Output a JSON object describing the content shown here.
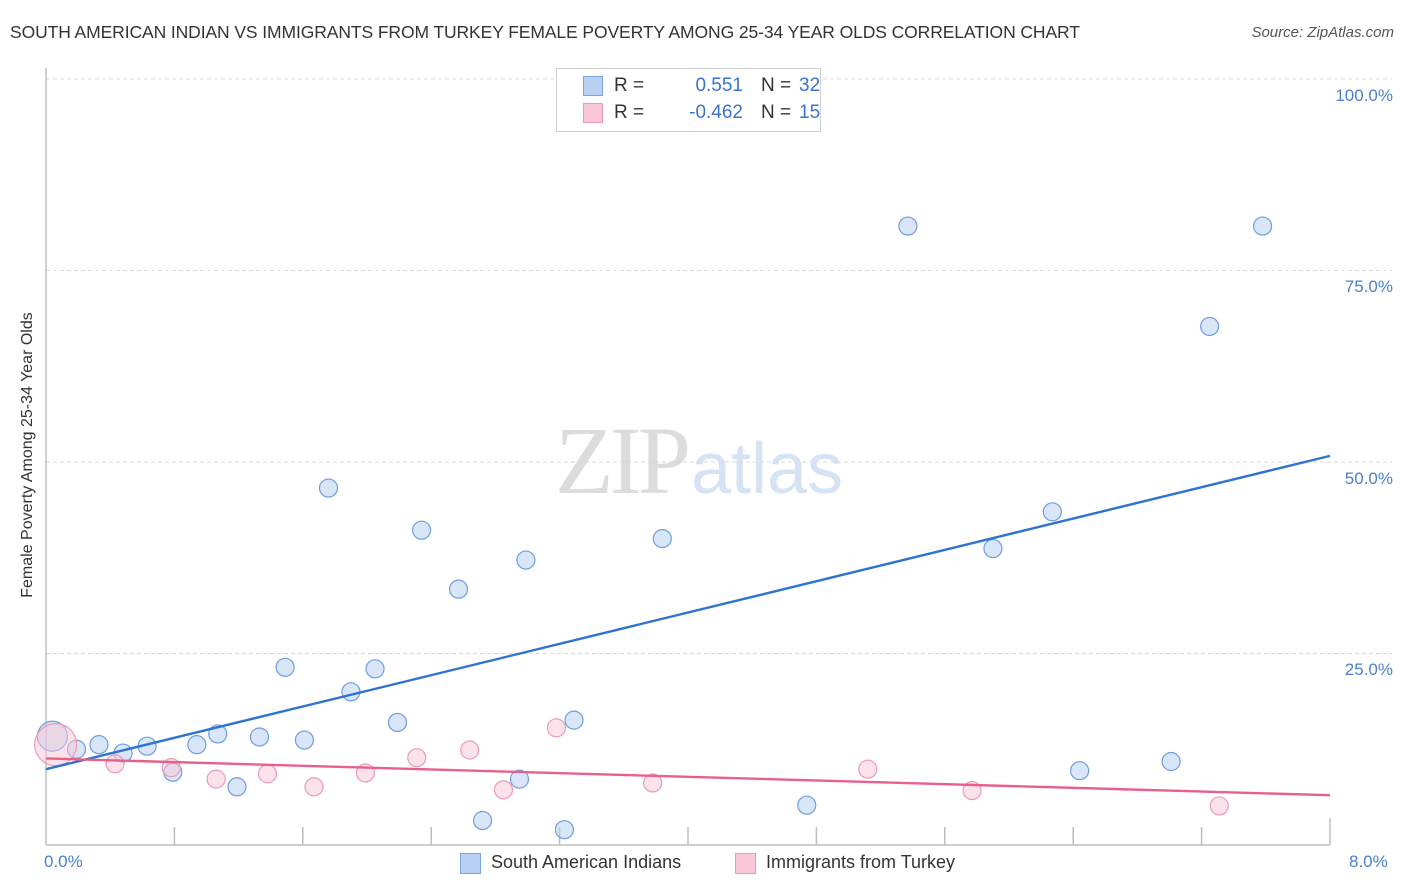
{
  "header": {
    "title": "SOUTH AMERICAN INDIAN VS IMMIGRANTS FROM TURKEY FEMALE POVERTY AMONG 25-34 YEAR OLDS CORRELATION CHART",
    "source": "Source: ZipAtlas.com"
  },
  "watermark": {
    "zip": "ZIP",
    "atlas": "atlas"
  },
  "legend_top": {
    "rows": [
      {
        "r_label": "R =",
        "r_value": "0.551",
        "n_label": "N =",
        "n_value": "32",
        "color": "#b8d1f3",
        "border": "#7aa6e3"
      },
      {
        "r_label": "R =",
        "r_value": "-0.462",
        "n_label": "N =",
        "n_value": "15",
        "color": "#f9c6d5",
        "border": "#ea9ab2"
      }
    ]
  },
  "legend_bottom": {
    "items": [
      {
        "label": "South American Indians",
        "color": "#b8d1f3",
        "border": "#7aa6e3"
      },
      {
        "label": "Immigrants from Turkey",
        "color": "#f9c6d5",
        "border": "#ea9ab2"
      }
    ]
  },
  "axes": {
    "y_label": "Female Poverty Among 25-34 Year Olds",
    "y_ticks": [
      "100.0%",
      "75.0%",
      "50.0%",
      "25.0%"
    ],
    "x_ticks": [
      "0.0%",
      "8.0%"
    ]
  },
  "colors": {
    "series1_fill": "#b8d1f3",
    "series1_stroke": "#6e9de0",
    "series1_line": "#2f72d0",
    "series2_fill": "#f9c6d5",
    "series2_stroke": "#eb9bb3",
    "series2_line": "#e8608a",
    "tick_text": "#4a7fd1"
  },
  "chart_data": {
    "type": "scatter",
    "title": "SOUTH AMERICAN INDIAN VS IMMIGRANTS FROM TURKEY FEMALE POVERTY AMONG 25-34 YEAR OLDS CORRELATION CHART",
    "xlabel": "",
    "ylabel": "Female Poverty Among 25-34 Year Olds",
    "xlim": [
      0,
      8
    ],
    "ylim": [
      0,
      100
    ],
    "x_unit": "%",
    "y_unit": "%",
    "x_tick_labels": [
      "0.0%",
      "8.0%"
    ],
    "y_tick_labels": [
      "25.0%",
      "50.0%",
      "75.0%",
      "100.0%"
    ],
    "grid": {
      "horizontal": true,
      "vertical": false,
      "style": "dashed"
    },
    "legend_position": "bottom",
    "series": [
      {
        "name": "South American Indians",
        "R": 0.551,
        "N": 32,
        "trend": {
          "x": [
            0,
            8
          ],
          "y": [
            9.9,
            50.8
          ]
        },
        "points": [
          {
            "x": 0.04,
            "y": 14.2,
            "size": "large"
          },
          {
            "x": 0.19,
            "y": 12.5
          },
          {
            "x": 0.33,
            "y": 13.1
          },
          {
            "x": 0.48,
            "y": 12.0
          },
          {
            "x": 0.63,
            "y": 12.9
          },
          {
            "x": 0.79,
            "y": 9.5
          },
          {
            "x": 0.94,
            "y": 13.1
          },
          {
            "x": 1.07,
            "y": 14.5
          },
          {
            "x": 1.19,
            "y": 7.6
          },
          {
            "x": 1.33,
            "y": 14.1
          },
          {
            "x": 1.49,
            "y": 23.2
          },
          {
            "x": 1.61,
            "y": 13.7
          },
          {
            "x": 1.76,
            "y": 46.6
          },
          {
            "x": 1.9,
            "y": 20.0
          },
          {
            "x": 2.05,
            "y": 23.0
          },
          {
            "x": 2.19,
            "y": 16.0
          },
          {
            "x": 2.34,
            "y": 41.1
          },
          {
            "x": 2.57,
            "y": 33.4
          },
          {
            "x": 2.72,
            "y": 3.2
          },
          {
            "x": 2.95,
            "y": 8.6
          },
          {
            "x": 2.99,
            "y": 37.2
          },
          {
            "x": 3.23,
            "y": 2.0
          },
          {
            "x": 3.29,
            "y": 16.3
          },
          {
            "x": 3.84,
            "y": 40.0
          },
          {
            "x": 4.74,
            "y": 5.2
          },
          {
            "x": 5.37,
            "y": 80.8
          },
          {
            "x": 5.9,
            "y": 38.7
          },
          {
            "x": 6.27,
            "y": 43.5
          },
          {
            "x": 6.44,
            "y": 9.7
          },
          {
            "x": 7.01,
            "y": 10.9
          },
          {
            "x": 7.25,
            "y": 67.7
          },
          {
            "x": 7.58,
            "y": 80.8
          }
        ]
      },
      {
        "name": "Immigrants from Turkey",
        "R": -0.462,
        "N": 15,
        "trend": {
          "x": [
            0,
            8
          ],
          "y": [
            11.3,
            6.5
          ]
        },
        "points": [
          {
            "x": 0.06,
            "y": 13.1,
            "size": "large"
          },
          {
            "x": 0.43,
            "y": 10.6
          },
          {
            "x": 0.78,
            "y": 10.1
          },
          {
            "x": 1.06,
            "y": 8.6
          },
          {
            "x": 1.38,
            "y": 9.3
          },
          {
            "x": 1.67,
            "y": 7.6
          },
          {
            "x": 1.99,
            "y": 9.4
          },
          {
            "x": 2.31,
            "y": 11.4
          },
          {
            "x": 2.64,
            "y": 12.4
          },
          {
            "x": 2.85,
            "y": 7.2
          },
          {
            "x": 3.18,
            "y": 15.3
          },
          {
            "x": 3.78,
            "y": 8.1
          },
          {
            "x": 5.12,
            "y": 9.9
          },
          {
            "x": 5.77,
            "y": 7.1
          },
          {
            "x": 7.31,
            "y": 5.1
          }
        ]
      }
    ]
  }
}
